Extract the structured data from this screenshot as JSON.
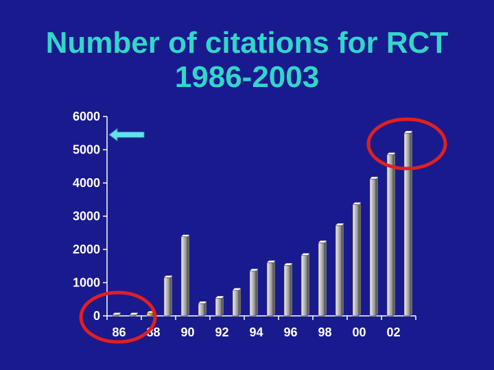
{
  "title_lines": [
    "Number of citations for RCT",
    "1986-2003"
  ],
  "colors": {
    "background": "#1a1a8f",
    "title": "#33d6c8",
    "axis": "#ffffff",
    "bar": "#bdbdbd",
    "highlight_bar": "#e6c040",
    "annotation": "#e02020",
    "arrow": "#66e0ee"
  },
  "chart_data": {
    "type": "bar",
    "title": "Number of citations for RCT 1986-2003",
    "xlabel": "",
    "ylabel": "",
    "ylim": [
      0,
      6000
    ],
    "yticks": [
      0,
      1000,
      2000,
      3000,
      4000,
      5000,
      6000
    ],
    "categories": [
      "86",
      "87",
      "88",
      "89",
      "90",
      "91",
      "92",
      "93",
      "94",
      "95",
      "96",
      "97",
      "98",
      "99",
      "00",
      "01",
      "02",
      "03"
    ],
    "xtick_labels": [
      "86",
      "88",
      "90",
      "92",
      "94",
      "96",
      "98",
      "00",
      "02"
    ],
    "values": [
      30,
      30,
      80,
      1150,
      2380,
      370,
      530,
      770,
      1350,
      1600,
      1520,
      1820,
      2200,
      2720,
      3350,
      4120,
      4850,
      5500
    ],
    "highlighted_categories": [
      "88"
    ],
    "grid": false,
    "legend": "none",
    "annotations": [
      {
        "kind": "ellipse",
        "target": "bars 86-88 near zero",
        "color": "#e02020"
      },
      {
        "kind": "ellipse",
        "target": "bars 02-03 near 5000-6000",
        "color": "#e02020"
      },
      {
        "kind": "arrow",
        "target": "y = 5500 on axis",
        "direction": "left",
        "color": "#66e0ee"
      }
    ]
  }
}
